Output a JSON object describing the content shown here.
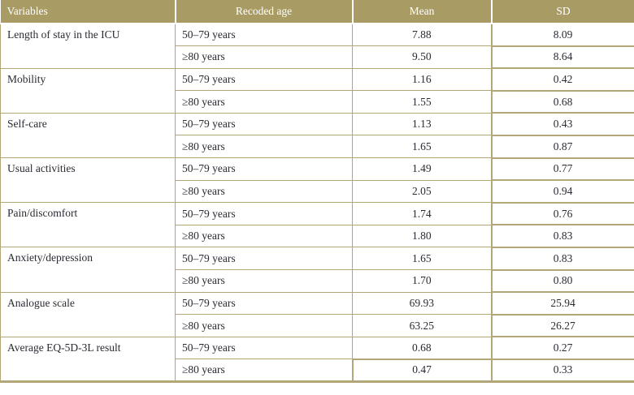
{
  "table": {
    "headers": {
      "variables": "Variables",
      "recoded_age": "Recoded age",
      "mean": "Mean",
      "sd": "SD"
    },
    "groups": [
      {
        "variable": "Length of stay in the ICU",
        "rows": [
          {
            "age": "50–79 years",
            "mean": "7.88",
            "sd": "8.09"
          },
          {
            "age": "≥80 years",
            "mean": "9.50",
            "sd": "8.64"
          }
        ]
      },
      {
        "variable": "Mobility",
        "rows": [
          {
            "age": "50–79 years",
            "mean": "1.16",
            "sd": "0.42"
          },
          {
            "age": "≥80 years",
            "mean": "1.55",
            "sd": "0.68"
          }
        ]
      },
      {
        "variable": "Self-care",
        "rows": [
          {
            "age": "50–79 years",
            "mean": "1.13",
            "sd": "0.43"
          },
          {
            "age": "≥80 years",
            "mean": "1.65",
            "sd": "0.87"
          }
        ]
      },
      {
        "variable": "Usual activities",
        "rows": [
          {
            "age": "50–79 years",
            "mean": "1.49",
            "sd": "0.77"
          },
          {
            "age": "≥80 years",
            "mean": "2.05",
            "sd": "0.94"
          }
        ]
      },
      {
        "variable": "Pain/discomfort",
        "rows": [
          {
            "age": "50–79 years",
            "mean": "1.74",
            "sd": "0.76"
          },
          {
            "age": "≥80 years",
            "mean": "1.80",
            "sd": "0.83"
          }
        ]
      },
      {
        "variable": "Anxiety/depression",
        "rows": [
          {
            "age": "50–79 years",
            "mean": "1.65",
            "sd": "0.83"
          },
          {
            "age": "≥80 years",
            "mean": "1.70",
            "sd": "0.80"
          }
        ]
      },
      {
        "variable": "Analogue scale",
        "rows": [
          {
            "age": "50–79 years",
            "mean": "69.93",
            "sd": "25.94"
          },
          {
            "age": "≥80 years",
            "mean": "63.25",
            "sd": "26.27"
          }
        ]
      },
      {
        "variable": "Average EQ-5D-3L result",
        "rows": [
          {
            "age": "50–79 years",
            "mean": "0.68",
            "sd": "0.27"
          },
          {
            "age": "≥80 years",
            "mean": "0.47",
            "sd": "0.33"
          }
        ]
      }
    ]
  },
  "colors": {
    "header_bg": "#a89c64",
    "border": "#b3a778",
    "header_text": "#ffffff",
    "body_text": "#2a2a33"
  }
}
